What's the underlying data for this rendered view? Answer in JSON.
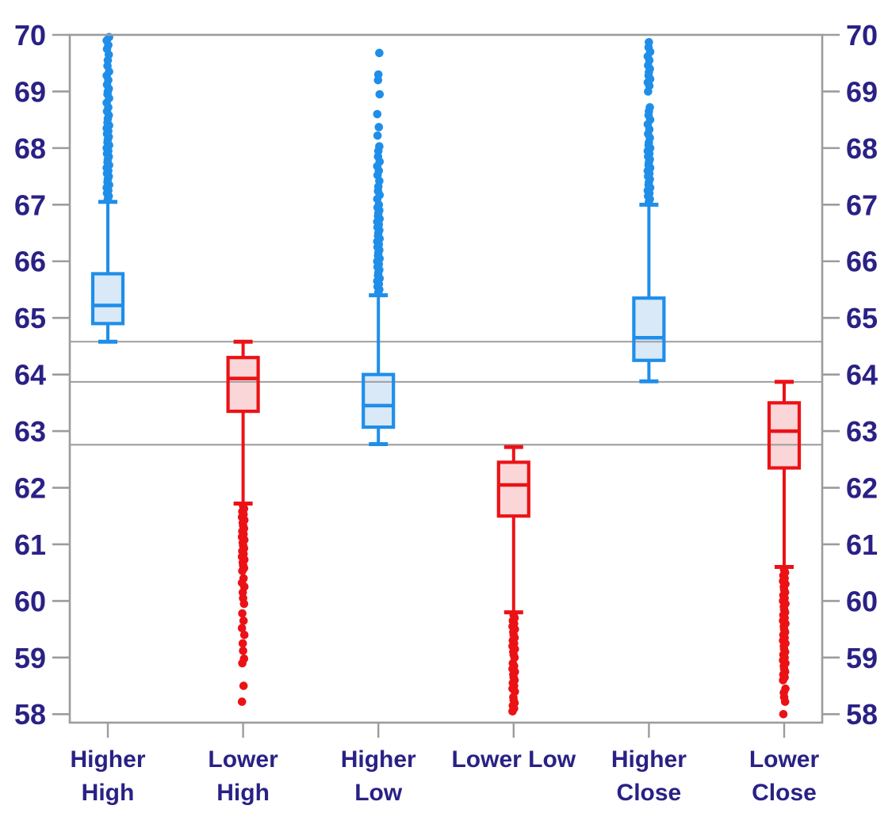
{
  "chart_data": {
    "type": "box",
    "title": "",
    "legend": "none",
    "grid": "reference-lines-only",
    "categories": [
      "Higher High",
      "Lower High",
      "Higher Low",
      "Lower Low",
      "Higher Close",
      "Lower Close"
    ],
    "category_label_lines": [
      [
        "Higher",
        "High"
      ],
      [
        "Lower",
        "High"
      ],
      [
        "Higher",
        "Low"
      ],
      [
        "Lower Low"
      ],
      [
        "Higher",
        "Close"
      ],
      [
        "Lower",
        "Close"
      ]
    ],
    "y_axis": {
      "min": 57.85,
      "max": 70,
      "ticks": [
        70,
        69,
        68,
        67,
        66,
        65,
        64,
        63,
        62,
        61,
        60,
        59,
        58
      ],
      "sides": [
        "left",
        "right"
      ]
    },
    "reference_lines": [
      64.58,
      63.87,
      62.76
    ],
    "boxes": [
      {
        "label": "Higher High",
        "color_key": "blue",
        "whisker_low": 64.58,
        "q1": 64.9,
        "median": 65.22,
        "q3": 65.78,
        "whisker_high": 67.05,
        "outlier_side": "high",
        "outliers": [
          67.1,
          67.15,
          67.2,
          67.25,
          67.3,
          67.35,
          67.4,
          67.45,
          67.5,
          67.55,
          67.6,
          67.65,
          67.7,
          67.75,
          67.8,
          67.85,
          67.9,
          67.95,
          68.0,
          68.05,
          68.1,
          68.15,
          68.2,
          68.25,
          68.3,
          68.35,
          68.4,
          68.45,
          68.52,
          68.58,
          68.65,
          68.72,
          68.8,
          68.88,
          68.95,
          69.0,
          69.05,
          69.12,
          69.2,
          69.28,
          69.35,
          69.45,
          69.55,
          69.65,
          69.75,
          69.82,
          69.9,
          69.96
        ]
      },
      {
        "label": "Lower High",
        "color_key": "red",
        "whisker_low": 61.72,
        "q1": 63.35,
        "median": 63.93,
        "q3": 64.3,
        "whisker_high": 64.58,
        "outlier_side": "low",
        "outliers": [
          61.68,
          61.63,
          61.58,
          61.53,
          61.48,
          61.43,
          61.38,
          61.33,
          61.28,
          61.23,
          61.18,
          61.13,
          61.08,
          61.03,
          60.98,
          60.93,
          60.88,
          60.83,
          60.78,
          60.73,
          60.68,
          60.63,
          60.58,
          60.53,
          60.4,
          60.32,
          60.25,
          60.15,
          60.05,
          59.95,
          59.78,
          59.65,
          59.52,
          59.4,
          59.25,
          59.12,
          58.98,
          58.9,
          58.5,
          58.22
        ]
      },
      {
        "label": "Higher Low",
        "color_key": "blue",
        "whisker_low": 62.77,
        "q1": 63.07,
        "median": 63.45,
        "q3": 64.0,
        "whisker_high": 65.4,
        "outlier_side": "high",
        "outliers": [
          65.45,
          65.5,
          65.55,
          65.6,
          65.65,
          65.7,
          65.75,
          65.8,
          65.85,
          65.9,
          65.95,
          66.0,
          66.05,
          66.1,
          66.15,
          66.2,
          66.25,
          66.3,
          66.35,
          66.4,
          66.45,
          66.5,
          66.55,
          66.6,
          66.65,
          66.7,
          66.75,
          66.8,
          66.85,
          66.9,
          66.95,
          67.0,
          67.1,
          67.17,
          67.24,
          67.32,
          67.42,
          67.52,
          67.6,
          67.68,
          67.76,
          67.85,
          67.95,
          68.03,
          68.22,
          68.37,
          68.6,
          68.95,
          69.2,
          69.3,
          69.68
        ]
      },
      {
        "label": "Lower Low",
        "color_key": "red",
        "whisker_low": 59.8,
        "q1": 61.5,
        "median": 62.05,
        "q3": 62.45,
        "whisker_high": 62.72,
        "outlier_side": "low",
        "outliers": [
          59.75,
          59.7,
          59.65,
          59.6,
          59.55,
          59.5,
          59.45,
          59.4,
          59.35,
          59.3,
          59.25,
          59.2,
          59.15,
          59.1,
          59.05,
          59.0,
          58.9,
          58.85,
          58.8,
          58.75,
          58.7,
          58.65,
          58.6,
          58.55,
          58.5,
          58.45,
          58.4,
          58.3,
          58.25,
          58.2,
          58.15,
          58.1,
          58.05
        ]
      },
      {
        "label": "Higher Close",
        "color_key": "blue",
        "whisker_low": 63.88,
        "q1": 64.25,
        "median": 64.65,
        "q3": 65.35,
        "whisker_high": 67.0,
        "outlier_side": "high",
        "outliers": [
          67.05,
          67.1,
          67.15,
          67.2,
          67.25,
          67.3,
          67.35,
          67.4,
          67.45,
          67.5,
          67.55,
          67.6,
          67.65,
          67.7,
          67.75,
          67.8,
          67.85,
          67.9,
          67.95,
          68.0,
          68.05,
          68.1,
          68.18,
          68.25,
          68.33,
          68.42,
          68.5,
          68.58,
          68.65,
          68.72,
          69.0,
          69.1,
          69.16,
          69.22,
          69.28,
          69.34,
          69.4,
          69.46,
          69.55,
          69.62,
          69.7,
          69.78,
          69.87
        ]
      },
      {
        "label": "Lower Close",
        "color_key": "red",
        "whisker_low": 60.6,
        "q1": 62.35,
        "median": 63.0,
        "q3": 63.5,
        "whisker_high": 63.87,
        "outlier_side": "low",
        "outliers": [
          60.55,
          60.5,
          60.45,
          60.4,
          60.35,
          60.3,
          60.25,
          60.2,
          60.15,
          60.1,
          60.05,
          60.0,
          59.95,
          59.9,
          59.85,
          59.8,
          59.75,
          59.7,
          59.65,
          59.6,
          59.55,
          59.5,
          59.45,
          59.4,
          59.35,
          59.3,
          59.25,
          59.2,
          59.15,
          59.1,
          59.05,
          59.0,
          58.95,
          58.9,
          58.85,
          58.8,
          58.75,
          58.7,
          58.65,
          58.6,
          58.45,
          58.38,
          58.3,
          58.22,
          58.0
        ]
      }
    ]
  },
  "styles": {
    "blue_stroke": "#1F8EE9",
    "blue_fill": "#D9E9F8",
    "red_stroke": "#EB1216",
    "red_fill": "#FAD6D8",
    "frame_gray": "#9C9C9C",
    "gridline_gray": "#A3A3A3",
    "label_navy": "#2A2185",
    "background": "#FFFFFF"
  }
}
